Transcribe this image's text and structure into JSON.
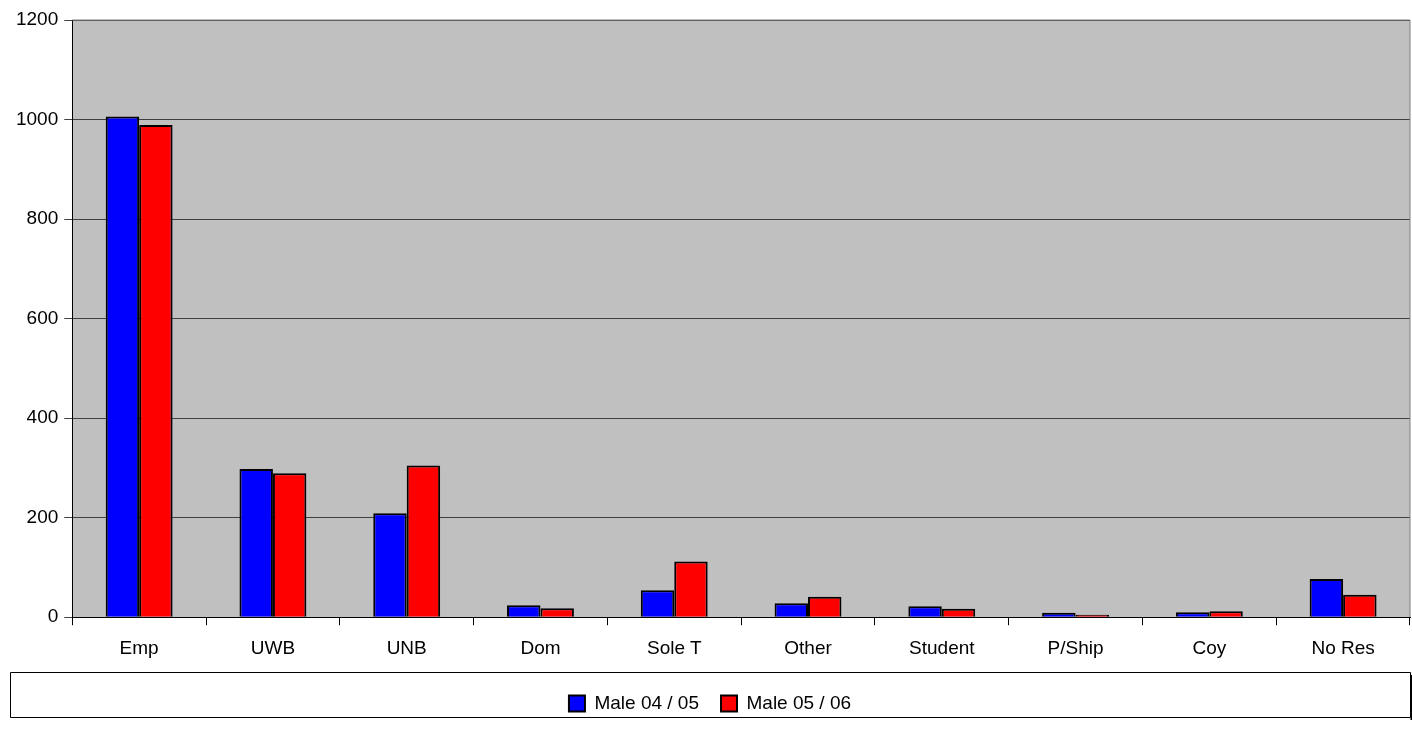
{
  "chart_data": {
    "type": "bar",
    "categories": [
      "Emp",
      "UWB",
      "UNB",
      "Dom",
      "Sole T",
      "Other",
      "Student",
      "P/Ship",
      "Coy",
      "No Res"
    ],
    "series": [
      {
        "name": "Male 04 / 05",
        "color": "#0000ff",
        "values": [
          1006,
          298,
          209,
          24,
          54,
          28,
          22,
          9,
          10,
          77
        ]
      },
      {
        "name": "Male 05 / 06",
        "color": "#ff0000",
        "values": [
          989,
          289,
          305,
          18,
          112,
          41,
          17,
          5,
          12,
          45
        ]
      }
    ],
    "ylim": [
      0,
      1200
    ],
    "yticks": [
      0,
      200,
      400,
      600,
      800,
      1000,
      1200
    ],
    "grid": "y",
    "legend": "bottom"
  }
}
